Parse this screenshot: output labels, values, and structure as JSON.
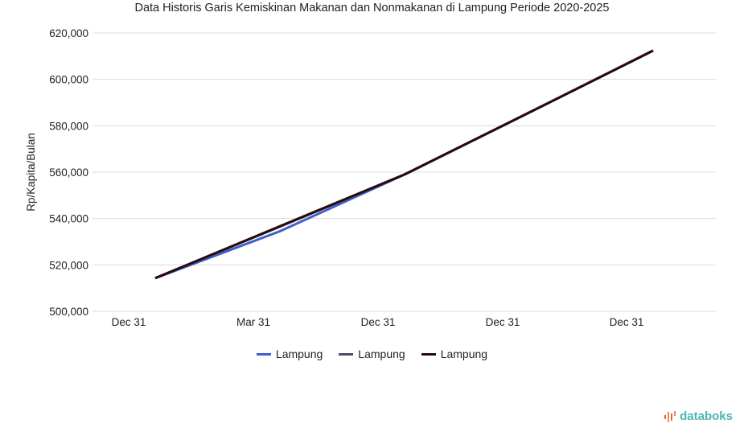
{
  "chart_data": {
    "type": "line",
    "title": "Data Historis Garis Kemiskinan Makanan dan Nonmakanan di Lampung Periode 2020-2025",
    "xlabel": "",
    "ylabel": "Rp/Kapita/Bulan",
    "categories": [
      "Dec 31",
      "Mar 31",
      "Dec 31",
      "Dec 31",
      "Dec 31"
    ],
    "ylim": [
      500000,
      620000
    ],
    "yticks": [
      "500,000",
      "520,000",
      "540,000",
      "560,000",
      "580,000",
      "600,000",
      "620,000"
    ],
    "grid": true,
    "legend_position": "bottom",
    "series": [
      {
        "name": "Lampung",
        "color": "#3c5fcf",
        "values": [
          514300,
          534500,
          559000,
          585700,
          612400
        ]
      },
      {
        "name": "Lampung",
        "color": "#4f4a6e",
        "values": [
          514300,
          536500,
          559000,
          585700,
          612400
        ]
      },
      {
        "name": "Lampung",
        "color": "#2a0a0a",
        "values": [
          514300,
          536700,
          559000,
          585700,
          612400
        ]
      }
    ]
  },
  "branding": {
    "logo_text": "databoks"
  }
}
